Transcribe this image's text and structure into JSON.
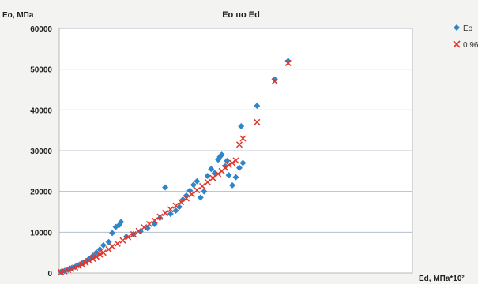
{
  "chart_data": {
    "type": "scatter",
    "title": "Eo по Ed",
    "ylabel": "Eo, МПа",
    "xlabel": "Ed, МПа*10²",
    "ylim": [
      0,
      60000
    ],
    "yticks": [
      0,
      10000,
      20000,
      30000,
      40000,
      50000,
      60000
    ],
    "xlim": [
      0,
      1000
    ],
    "grid": "horizontal",
    "legend_position": "top-right",
    "colors": {
      "series1": "#2e86c8",
      "series2": "#e0352b"
    },
    "series": [
      {
        "name": "Eo",
        "marker": "diamond",
        "points": [
          [
            5,
            300
          ],
          [
            15,
            500
          ],
          [
            25,
            800
          ],
          [
            35,
            1200
          ],
          [
            45,
            1500
          ],
          [
            55,
            1900
          ],
          [
            65,
            2400
          ],
          [
            75,
            2900
          ],
          [
            85,
            3500
          ],
          [
            95,
            4200
          ],
          [
            105,
            5000
          ],
          [
            115,
            5800
          ],
          [
            125,
            6800
          ],
          [
            140,
            7600
          ],
          [
            150,
            9800
          ],
          [
            160,
            11300
          ],
          [
            170,
            11800
          ],
          [
            175,
            12500
          ],
          [
            190,
            8900
          ],
          [
            210,
            9500
          ],
          [
            230,
            10200
          ],
          [
            250,
            11000
          ],
          [
            270,
            12000
          ],
          [
            285,
            13500
          ],
          [
            300,
            21000
          ],
          [
            315,
            14500
          ],
          [
            330,
            15300
          ],
          [
            340,
            16200
          ],
          [
            350,
            18000
          ],
          [
            360,
            19000
          ],
          [
            370,
            20200
          ],
          [
            380,
            21600
          ],
          [
            390,
            22500
          ],
          [
            400,
            18500
          ],
          [
            410,
            20000
          ],
          [
            420,
            23800
          ],
          [
            430,
            25500
          ],
          [
            440,
            24500
          ],
          [
            450,
            27800
          ],
          [
            455,
            28500
          ],
          [
            460,
            29000
          ],
          [
            470,
            26200
          ],
          [
            475,
            27500
          ],
          [
            480,
            24000
          ],
          [
            490,
            21500
          ],
          [
            500,
            23500
          ],
          [
            510,
            25800
          ],
          [
            515,
            36000
          ],
          [
            520,
            27000
          ],
          [
            560,
            41000
          ],
          [
            610,
            47500
          ],
          [
            648,
            52000
          ]
        ]
      },
      {
        "name": "0.96",
        "marker": "x",
        "points": [
          [
            5,
            200
          ],
          [
            15,
            450
          ],
          [
            25,
            750
          ],
          [
            35,
            1050
          ],
          [
            45,
            1350
          ],
          [
            55,
            1700
          ],
          [
            65,
            2100
          ],
          [
            75,
            2500
          ],
          [
            85,
            3000
          ],
          [
            95,
            3500
          ],
          [
            105,
            4000
          ],
          [
            115,
            4500
          ],
          [
            125,
            5000
          ],
          [
            140,
            5800
          ],
          [
            150,
            6500
          ],
          [
            165,
            7200
          ],
          [
            180,
            8000
          ],
          [
            195,
            8800
          ],
          [
            210,
            9500
          ],
          [
            225,
            10300
          ],
          [
            240,
            11200
          ],
          [
            255,
            12000
          ],
          [
            270,
            12900
          ],
          [
            285,
            13800
          ],
          [
            300,
            14700
          ],
          [
            315,
            15600
          ],
          [
            330,
            16500
          ],
          [
            345,
            17400
          ],
          [
            360,
            18300
          ],
          [
            375,
            19300
          ],
          [
            390,
            20300
          ],
          [
            405,
            21300
          ],
          [
            420,
            22300
          ],
          [
            435,
            23300
          ],
          [
            450,
            24300
          ],
          [
            460,
            25000
          ],
          [
            470,
            25800
          ],
          [
            480,
            26500
          ],
          [
            490,
            27000
          ],
          [
            500,
            27600
          ],
          [
            510,
            31500
          ],
          [
            520,
            33000
          ],
          [
            560,
            37000
          ],
          [
            610,
            47000
          ],
          [
            648,
            51500
          ]
        ]
      }
    ]
  }
}
